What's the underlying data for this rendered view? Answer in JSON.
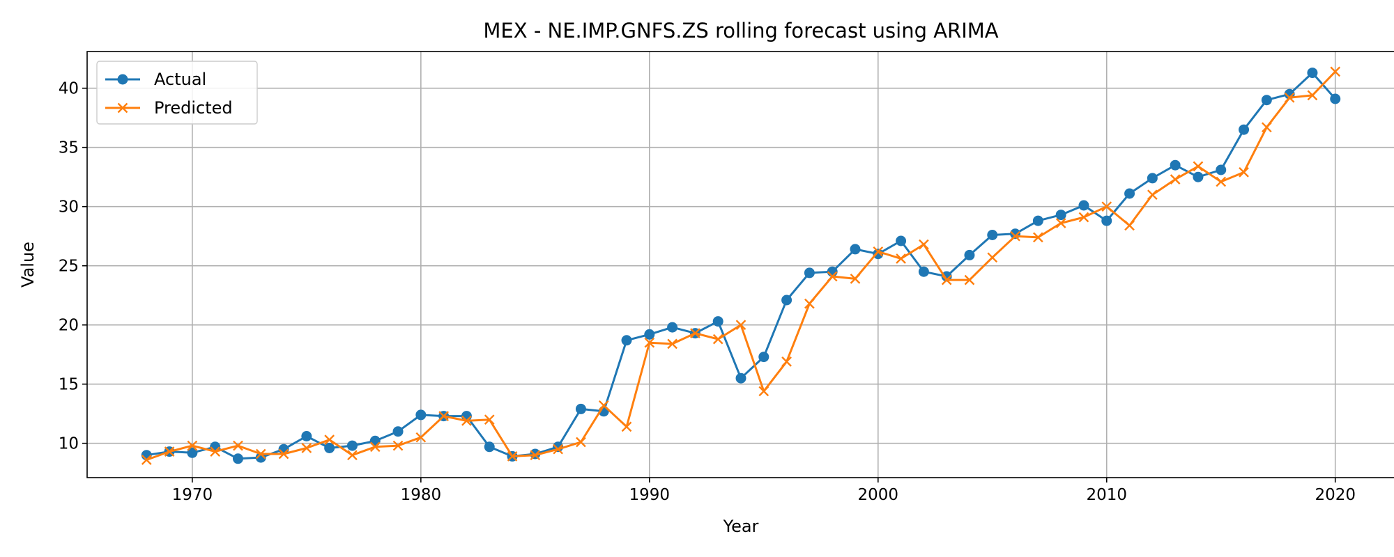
{
  "chart_data": {
    "type": "line",
    "title": "MEX - NE.IMP.GNFS.ZS rolling forecast using ARIMA",
    "xlabel": "Year",
    "ylabel": "Value",
    "xlim": [
      1965.4,
      2022.6
    ],
    "ylim": [
      7.1,
      43.1
    ],
    "xticks": [
      1970,
      1980,
      1990,
      2000,
      2010,
      2020
    ],
    "yticks": [
      10,
      15,
      20,
      25,
      30,
      35,
      40
    ],
    "grid": true,
    "legend_position": "top-left",
    "x": [
      1968,
      1969,
      1970,
      1971,
      1972,
      1973,
      1974,
      1975,
      1976,
      1977,
      1978,
      1979,
      1980,
      1981,
      1982,
      1983,
      1984,
      1985,
      1986,
      1987,
      1988,
      1989,
      1990,
      1991,
      1992,
      1993,
      1994,
      1995,
      1996,
      1997,
      1998,
      1999,
      2000,
      2001,
      2002,
      2003,
      2004,
      2005,
      2006,
      2007,
      2008,
      2009,
      2010,
      2011,
      2012,
      2013,
      2014,
      2015,
      2016,
      2017,
      2018,
      2019,
      2020
    ],
    "series": [
      {
        "name": "Actual",
        "color": "#1f77b4",
        "marker": "circle",
        "values": [
          9.0,
          9.3,
          9.2,
          9.7,
          8.7,
          8.8,
          9.5,
          10.6,
          9.6,
          9.8,
          10.2,
          11.0,
          12.4,
          12.3,
          12.3,
          9.7,
          8.9,
          9.1,
          9.7,
          12.9,
          12.7,
          18.7,
          19.2,
          19.8,
          19.3,
          20.3,
          15.5,
          17.3,
          22.1,
          24.4,
          24.5,
          26.4,
          26.0,
          27.1,
          24.5,
          24.1,
          25.9,
          27.6,
          27.7,
          28.8,
          29.3,
          30.1,
          28.8,
          31.1,
          32.4,
          33.5,
          32.5,
          33.1,
          36.5,
          39.0,
          39.5,
          41.3,
          39.1
        ]
      },
      {
        "name": "Predicted",
        "color": "#ff7f0e",
        "marker": "x",
        "values": [
          8.6,
          9.3,
          9.8,
          9.3,
          9.8,
          9.1,
          9.1,
          9.6,
          10.3,
          9.0,
          9.7,
          9.8,
          10.5,
          12.3,
          11.9,
          12.0,
          8.9,
          9.0,
          9.5,
          10.1,
          13.2,
          11.4,
          18.5,
          18.4,
          19.3,
          18.8,
          20.0,
          14.4,
          16.9,
          21.8,
          24.1,
          23.9,
          26.2,
          25.6,
          26.8,
          23.8,
          23.8,
          25.7,
          27.5,
          27.4,
          28.6,
          29.1,
          30.0,
          28.4,
          31.0,
          32.3,
          33.4,
          32.1,
          32.9,
          36.7,
          39.2,
          39.4,
          41.4
        ]
      }
    ]
  }
}
